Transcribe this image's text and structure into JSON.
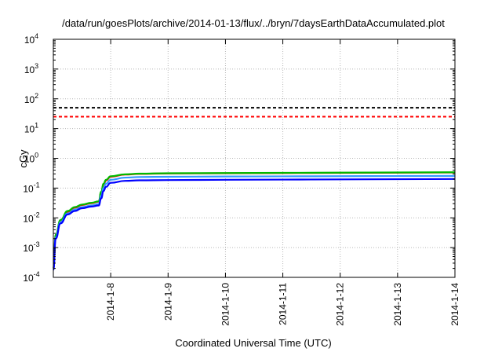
{
  "chart_data": {
    "type": "line",
    "title": "/data/run/goesPlots/archive/2014-01-13/flux/../bryn/7daysEarthDataAccumulated.plot",
    "xlabel": "Coordinated Universal Time (UTC)",
    "ylabel": "cGy",
    "x_type": "date",
    "xlim": [
      "2014-01-07",
      "2014-01-14"
    ],
    "x_ticks": [
      "2014-1-8",
      "2014-1-9",
      "2014-1-10",
      "2014-1-11",
      "2014-1-12",
      "2014-1-13",
      "2014-1-14"
    ],
    "y_scale": "log",
    "ylim": [
      0.0001,
      10000
    ],
    "y_ticks": [
      {
        "base": "10",
        "exp": "-4"
      },
      {
        "base": "10",
        "exp": "-3"
      },
      {
        "base": "10",
        "exp": "-2"
      },
      {
        "base": "10",
        "exp": "-1"
      },
      {
        "base": "10",
        "exp": "0"
      },
      {
        "base": "10",
        "exp": "1"
      },
      {
        "base": "10",
        "exp": "2"
      },
      {
        "base": "10",
        "exp": "3"
      },
      {
        "base": "10",
        "exp": "4"
      }
    ],
    "grid": true,
    "legend": "none",
    "reference_lines": [
      {
        "value": 50,
        "color": "#000000",
        "style": "dashed"
      },
      {
        "value": 25,
        "color": "#ff0000",
        "style": "dashed"
      }
    ],
    "series": [
      {
        "color": "#ff0000",
        "x": [
          "2014-01-07 00:00",
          "2014-01-07 01:00",
          "2014-01-07 03:00",
          "2014-01-07 06:00",
          "2014-01-07 09:00",
          "2014-01-07 12:00",
          "2014-01-07 16:00",
          "2014-01-07 19:00",
          "2014-01-07 20:00",
          "2014-01-07 21:00",
          "2014-01-07 22:00",
          "2014-01-08 00:00",
          "2014-01-08 06:00",
          "2014-01-08 12:00",
          "2014-01-09 00:00",
          "2014-01-10 00:00",
          "2014-01-11 00:00",
          "2014-01-12 00:00",
          "2014-01-13 00:00",
          "2014-01-14 00:00"
        ],
        "y": [
          0.0002,
          0.0025,
          0.008,
          0.016,
          0.022,
          0.027,
          0.031,
          0.035,
          0.07,
          0.13,
          0.18,
          0.24,
          0.285,
          0.3,
          0.31,
          0.315,
          0.32,
          0.325,
          0.33,
          0.335
        ]
      },
      {
        "color": "#00bb00",
        "x": [
          "2014-01-07 00:00",
          "2014-01-07 01:00",
          "2014-01-07 03:00",
          "2014-01-07 06:00",
          "2014-01-07 09:00",
          "2014-01-07 12:00",
          "2014-01-07 16:00",
          "2014-01-07 19:00",
          "2014-01-07 20:00",
          "2014-01-07 21:00",
          "2014-01-07 22:00",
          "2014-01-08 00:00",
          "2014-01-08 06:00",
          "2014-01-08 12:00",
          "2014-01-09 00:00",
          "2014-01-10 00:00",
          "2014-01-11 00:00",
          "2014-01-12 00:00",
          "2014-01-13 00:00",
          "2014-01-14 00:00"
        ],
        "y": [
          0.0002,
          0.0027,
          0.0085,
          0.017,
          0.023,
          0.028,
          0.032,
          0.036,
          0.075,
          0.14,
          0.19,
          0.25,
          0.29,
          0.305,
          0.315,
          0.32,
          0.325,
          0.33,
          0.335,
          0.34
        ]
      },
      {
        "color": "#3399ff",
        "x": [
          "2014-01-07 00:00",
          "2014-01-07 01:00",
          "2014-01-07 03:00",
          "2014-01-07 06:00",
          "2014-01-07 09:00",
          "2014-01-07 12:00",
          "2014-01-07 16:00",
          "2014-01-07 19:00",
          "2014-01-07 20:00",
          "2014-01-07 21:00",
          "2014-01-07 22:00",
          "2014-01-08 00:00",
          "2014-01-08 06:00",
          "2014-01-08 12:00",
          "2014-01-09 00:00",
          "2014-01-10 00:00",
          "2014-01-11 00:00",
          "2014-01-12 00:00",
          "2014-01-13 00:00",
          "2014-01-14 00:00"
        ],
        "y": [
          0.0002,
          0.0022,
          0.0072,
          0.014,
          0.019,
          0.023,
          0.026,
          0.029,
          0.055,
          0.1,
          0.14,
          0.19,
          0.225,
          0.235,
          0.24,
          0.245,
          0.248,
          0.251,
          0.254,
          0.257
        ]
      },
      {
        "color": "#0000ff",
        "x": [
          "2014-01-07 00:00",
          "2014-01-07 01:00",
          "2014-01-07 03:00",
          "2014-01-07 06:00",
          "2014-01-07 09:00",
          "2014-01-07 12:00",
          "2014-01-07 16:00",
          "2014-01-07 19:00",
          "2014-01-07 20:00",
          "2014-01-07 21:00",
          "2014-01-07 22:00",
          "2014-01-08 00:00",
          "2014-01-08 06:00",
          "2014-01-08 12:00",
          "2014-01-09 00:00",
          "2014-01-10 00:00",
          "2014-01-11 00:00",
          "2014-01-12 00:00",
          "2014-01-13 00:00",
          "2014-01-14 00:00"
        ],
        "y": [
          0.00018,
          0.002,
          0.0065,
          0.013,
          0.017,
          0.021,
          0.024,
          0.026,
          0.045,
          0.08,
          0.11,
          0.15,
          0.175,
          0.182,
          0.186,
          0.19,
          0.193,
          0.196,
          0.199,
          0.202
        ]
      }
    ]
  }
}
